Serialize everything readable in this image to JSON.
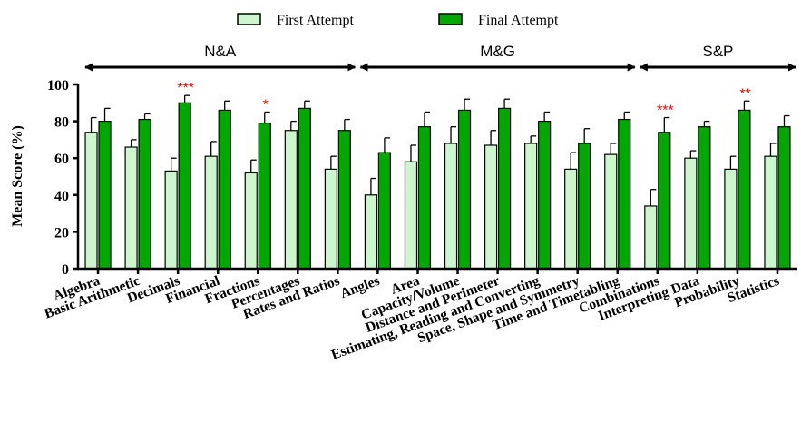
{
  "chart_data": {
    "type": "bar",
    "ylabel": "Mean Score (%)",
    "xlabel": "",
    "ylim": [
      0,
      100
    ],
    "yticks": [
      0,
      20,
      40,
      60,
      80,
      100
    ],
    "legend": {
      "placement": "top-center"
    },
    "colors": {
      "First Attempt": "#ccf7cc",
      "Final Attempt": "#00a800",
      "significance": "#ff0000"
    },
    "groups": [
      {
        "label": "N&A",
        "categories": [
          "Algebra",
          "Basic Arithmetic",
          "Decimals",
          "Financial",
          "Fractions",
          "Percentages",
          "Rates and Ratios"
        ]
      },
      {
        "label": "M&G",
        "categories": [
          "Angles",
          "Area",
          "Capacity/Volume",
          "Distance and Perimeter",
          "Estimating, Reading and Converting",
          "Space, Shape and Symmetry",
          "Time and Timetabling"
        ]
      },
      {
        "label": "S&P",
        "categories": [
          "Combinations",
          "Interpreting Data",
          "Probability",
          "Statistics"
        ]
      }
    ],
    "categories": [
      "Algebra",
      "Basic Arithmetic",
      "Decimals",
      "Financial",
      "Fractions",
      "Percentages",
      "Rates and Ratios",
      "Angles",
      "Area",
      "Capacity/Volume",
      "Distance and Perimeter",
      "Estimating, Reading and Converting",
      "Space, Shape and Symmetry",
      "Time and Timetabling",
      "Combinations",
      "Interpreting Data",
      "Probability",
      "Statistics"
    ],
    "series": [
      {
        "name": "First Attempt",
        "values": [
          74,
          66,
          53,
          61,
          52,
          75,
          54,
          40,
          58,
          68,
          67,
          68,
          54,
          62,
          34,
          60,
          54,
          61
        ],
        "error": [
          8,
          4,
          7,
          8,
          7,
          5,
          7,
          9,
          9,
          9,
          8,
          4,
          9,
          6,
          9,
          4,
          7,
          7
        ]
      },
      {
        "name": "Final Attempt",
        "values": [
          80,
          81,
          90,
          86,
          79,
          87,
          75,
          63,
          77,
          86,
          87,
          80,
          68,
          81,
          74,
          77,
          86,
          77
        ],
        "error": [
          7,
          3,
          4,
          5,
          6,
          4,
          6,
          8,
          8,
          6,
          5,
          5,
          8,
          4,
          8,
          3,
          5,
          6
        ]
      }
    ],
    "significance": [
      "",
      "",
      "***",
      "",
      "*",
      "",
      "",
      "",
      "",
      "",
      "",
      "",
      "",
      "",
      "***",
      "",
      "**",
      ""
    ]
  }
}
